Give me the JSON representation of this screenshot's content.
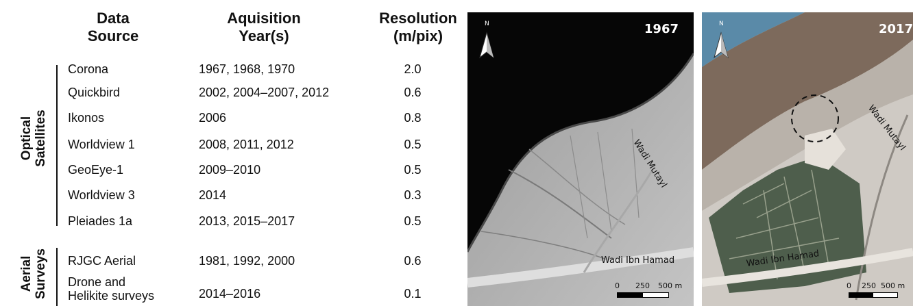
{
  "table": {
    "headers": {
      "source": [
        "Data",
        "Source"
      ],
      "year": [
        "Aquisition",
        "Year(s)"
      ],
      "resolution": [
        "Resolution",
        "(m/pix)"
      ]
    },
    "groups": [
      {
        "label": [
          "Optical",
          "Satellites"
        ]
      },
      {
        "label": [
          "Aerial",
          "Surveys"
        ]
      }
    ],
    "rows": [
      {
        "source": "Corona",
        "years": "1967, 1968, 1970",
        "resolution": "2.0"
      },
      {
        "source": "Quickbird",
        "years": "2002, 2004–2007, 2012",
        "resolution": "0.6"
      },
      {
        "source": "Ikonos",
        "years": "2006",
        "resolution": "0.8"
      },
      {
        "source": "Worldview 1",
        "years": "2008, 2011, 2012",
        "resolution": "0.5"
      },
      {
        "source": "GeoEye-1",
        "years": "2009–2010",
        "resolution": "0.5"
      },
      {
        "source": "Worldview 3",
        "years": "2014",
        "resolution": "0.3"
      },
      {
        "source": "Pleiades 1a",
        "years": "2013, 2015–2017",
        "resolution": "0.5"
      },
      {
        "source": "RJGC Aerial",
        "years": "1981, 1992, 2000",
        "resolution": "0.6"
      },
      {
        "source": [
          "Drone and",
          "Helikite surveys"
        ],
        "years": "2014–2016",
        "resolution": "0.1"
      }
    ]
  },
  "maps": [
    {
      "year": "1967",
      "north": "N",
      "labels": {
        "wadi_mutayl": "Wadi Mutayl",
        "wadi_ibn_hamad": "Wadi Ibn Hamad"
      },
      "scale": [
        "0",
        "250",
        "500 m"
      ]
    },
    {
      "year": "2017",
      "north": "N",
      "labels": {
        "wadi_mutayl": "Wadi Mutayl",
        "wadi_ibn_hamad": "Wadi Ibn Hamad"
      },
      "scale": [
        "0",
        "250",
        "500 m"
      ]
    }
  ]
}
